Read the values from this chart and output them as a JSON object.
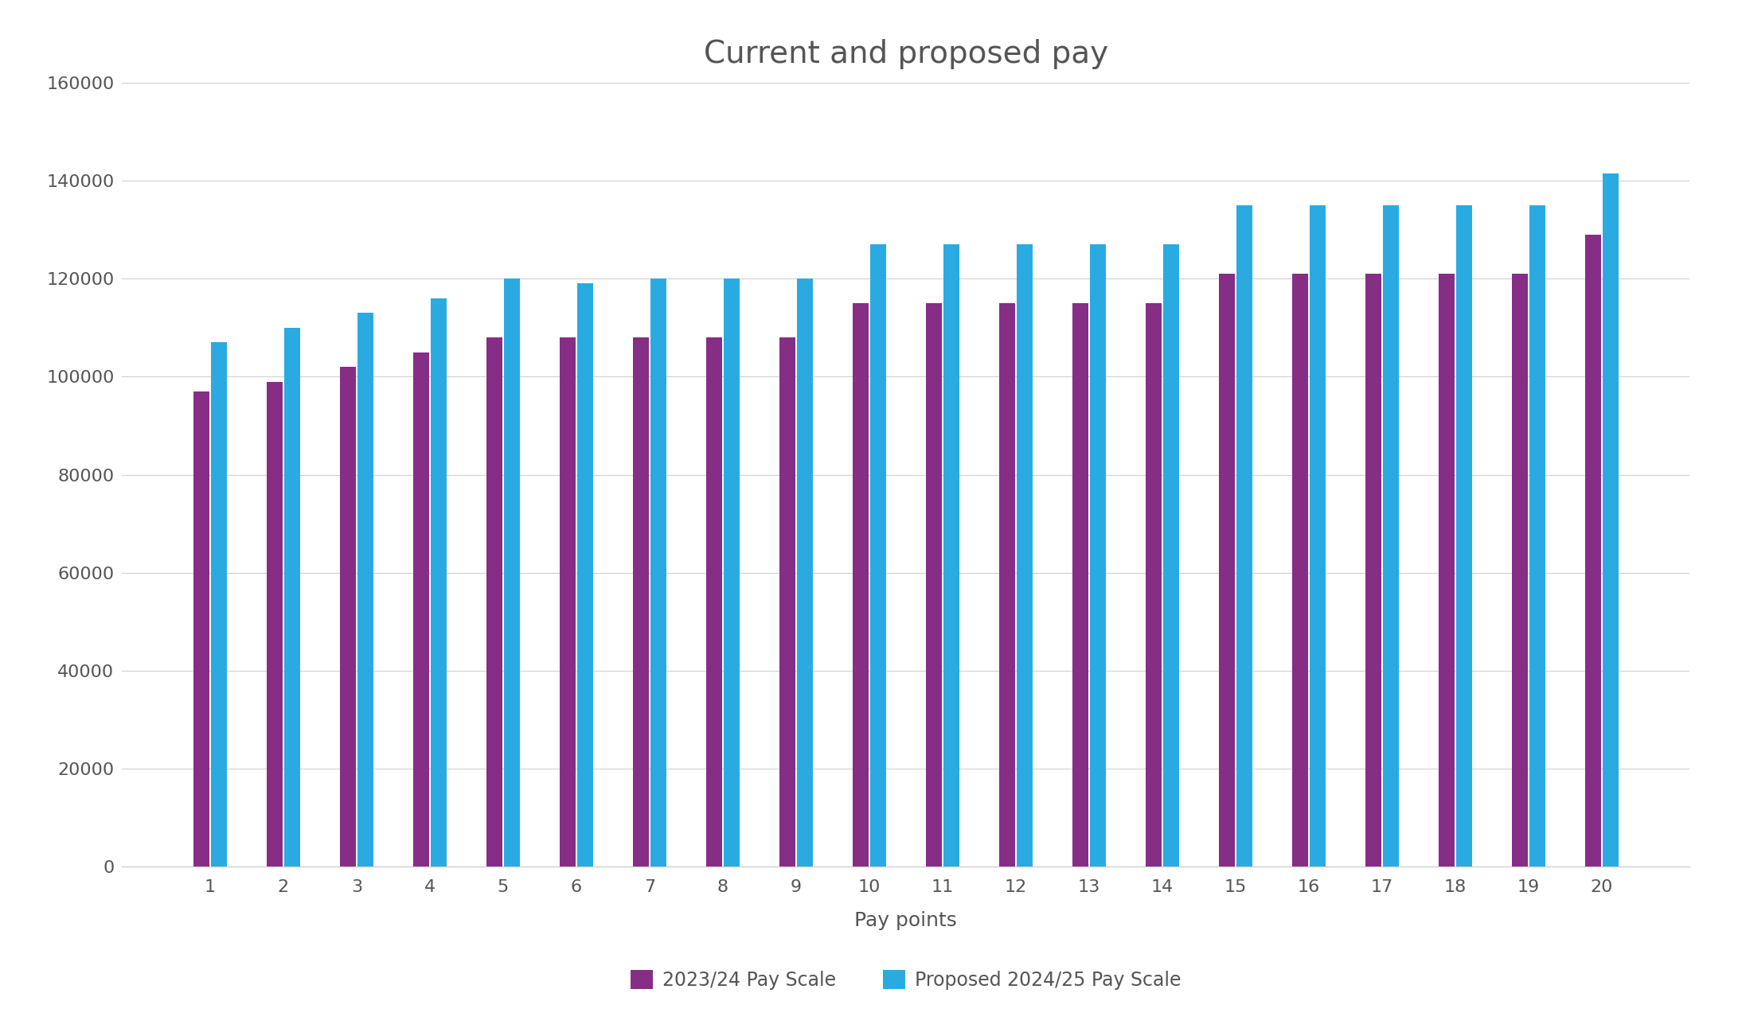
{
  "title": "Current and proposed pay",
  "xlabel": "Pay points",
  "ylabel": "",
  "categories": [
    1,
    2,
    3,
    4,
    5,
    6,
    7,
    8,
    9,
    10,
    11,
    12,
    13,
    14,
    15,
    16,
    17,
    18,
    19,
    20
  ],
  "current_pay": [
    97000,
    99000,
    102000,
    105000,
    108000,
    108000,
    108000,
    108000,
    108000,
    115000,
    115000,
    115000,
    115000,
    115000,
    121000,
    121000,
    121000,
    121000,
    121000,
    129000
  ],
  "proposed_pay": [
    107000,
    110000,
    113000,
    116000,
    120000,
    119000,
    120000,
    120000,
    120000,
    127000,
    127000,
    127000,
    127000,
    127000,
    135000,
    135000,
    135000,
    135000,
    135000,
    141500
  ],
  "color_current": "#862D86",
  "color_proposed": "#29ABE2",
  "legend_current": "2023/24 Pay Scale",
  "legend_proposed": "Proposed 2024/25 Pay Scale",
  "ylim": [
    0,
    160000
  ],
  "yticks": [
    0,
    20000,
    40000,
    60000,
    80000,
    100000,
    120000,
    140000,
    160000
  ],
  "background_color": "#ffffff",
  "grid_color": "#d0d0d0",
  "title_fontsize": 28,
  "axis_label_fontsize": 18,
  "tick_fontsize": 16,
  "legend_fontsize": 17,
  "bar_width": 0.22
}
